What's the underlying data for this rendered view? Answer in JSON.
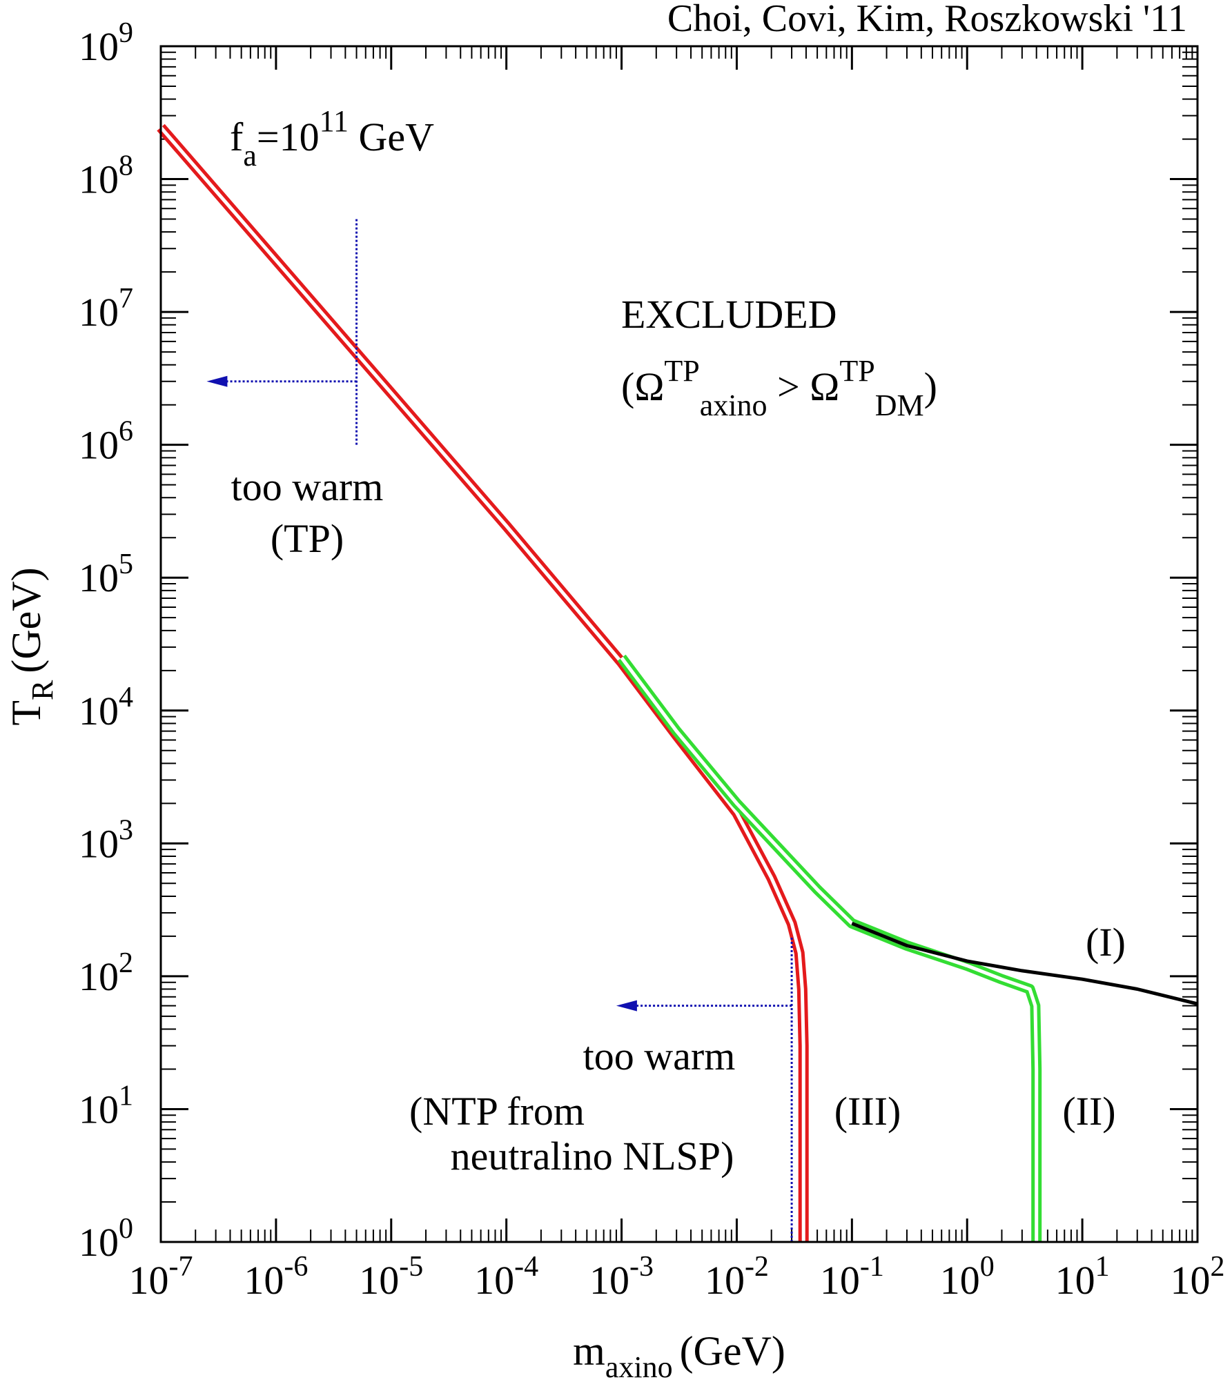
{
  "chart_data": {
    "type": "line",
    "title": "Choi, Covi, Kim, Roszkowski '11",
    "xlabel": {
      "main": "m",
      "sub": "axino",
      "unit": "(GeV)"
    },
    "ylabel": {
      "main": "T",
      "sub": "R",
      "unit": "(GeV)"
    },
    "xscale": "log",
    "yscale": "log",
    "xlim": [
      1e-07,
      100
    ],
    "ylim": [
      1,
      1000000000.0
    ],
    "x_ticks": [
      {
        "base": "10",
        "exp": "-7",
        "value": 1e-07
      },
      {
        "base": "10",
        "exp": "-6",
        "value": 1e-06
      },
      {
        "base": "10",
        "exp": "-5",
        "value": 1e-05
      },
      {
        "base": "10",
        "exp": "-4",
        "value": 0.0001
      },
      {
        "base": "10",
        "exp": "-3",
        "value": 0.001
      },
      {
        "base": "10",
        "exp": "-2",
        "value": 0.01
      },
      {
        "base": "10",
        "exp": "-1",
        "value": 0.1
      },
      {
        "base": "10",
        "exp": "0",
        "value": 1
      },
      {
        "base": "10",
        "exp": "1",
        "value": 10
      },
      {
        "base": "10",
        "exp": "2",
        "value": 100
      }
    ],
    "y_ticks": [
      {
        "base": "10",
        "exp": "0",
        "value": 1
      },
      {
        "base": "10",
        "exp": "1",
        "value": 10
      },
      {
        "base": "10",
        "exp": "2",
        "value": 100
      },
      {
        "base": "10",
        "exp": "3",
        "value": 1000
      },
      {
        "base": "10",
        "exp": "4",
        "value": 10000
      },
      {
        "base": "10",
        "exp": "5",
        "value": 100000
      },
      {
        "base": "10",
        "exp": "6",
        "value": 1000000
      },
      {
        "base": "10",
        "exp": "7",
        "value": 10000000
      },
      {
        "base": "10",
        "exp": "8",
        "value": 100000000
      },
      {
        "base": "10",
        "exp": "9",
        "value": 1000000000
      }
    ],
    "series": [
      {
        "name": "(III)",
        "color": "#e41a1c",
        "style": "double",
        "points": [
          [
            1e-07,
            245000000.0
          ],
          [
            1e-06,
            24500000.0
          ],
          [
            1e-05,
            2450000.0
          ],
          [
            0.0001,
            245000.0
          ],
          [
            0.001,
            23000.0
          ],
          [
            0.003,
            6500
          ],
          [
            0.01,
            1700
          ],
          [
            0.02,
            550
          ],
          [
            0.03,
            250
          ],
          [
            0.035,
            150
          ],
          [
            0.037,
            80
          ],
          [
            0.038,
            30
          ],
          [
            0.038,
            1
          ]
        ]
      },
      {
        "name": "(II)",
        "color": "#33dd33",
        "style": "double",
        "points": [
          [
            0.001,
            25000.0
          ],
          [
            0.003,
            7000
          ],
          [
            0.01,
            2000
          ],
          [
            0.05,
            450
          ],
          [
            0.1,
            250
          ],
          [
            0.3,
            170
          ],
          [
            1,
            120
          ],
          [
            2,
            95
          ],
          [
            3.5,
            80
          ],
          [
            3.9,
            60
          ],
          [
            4,
            20
          ],
          [
            4,
            1
          ]
        ]
      },
      {
        "name": "(I)",
        "color": "#000000",
        "style": "single",
        "points": [
          [
            0.1,
            250
          ],
          [
            0.3,
            170
          ],
          [
            1,
            130
          ],
          [
            3,
            110
          ],
          [
            10,
            95
          ],
          [
            30,
            80
          ],
          [
            100,
            62
          ]
        ]
      }
    ],
    "annotations": [
      {
        "id": "fa",
        "parts": [
          {
            "t": "f"
          },
          {
            "t": "a",
            "s": "sub"
          },
          {
            "t": "=10"
          },
          {
            "t": "11",
            "s": "sup"
          },
          {
            "t": " GeV"
          }
        ]
      },
      {
        "id": "excluded1",
        "parts": [
          {
            "t": "EXCLUDED"
          }
        ]
      },
      {
        "id": "excluded2",
        "parts": [
          {
            "t": "(Ω"
          },
          {
            "t": "TP",
            "s": "sup"
          },
          {
            "t": "axino",
            "s": "sub"
          },
          {
            "t": " > Ω"
          },
          {
            "t": "TP",
            "s": "sup"
          },
          {
            "t": "DM",
            "s": "sub"
          },
          {
            "t": ")"
          }
        ]
      },
      {
        "id": "warm_tp1",
        "parts": [
          {
            "t": "too warm"
          }
        ]
      },
      {
        "id": "warm_tp2",
        "parts": [
          {
            "t": "(TP)"
          }
        ]
      },
      {
        "id": "warm_ntp1",
        "parts": [
          {
            "t": "too warm"
          }
        ]
      },
      {
        "id": "warm_ntp2",
        "parts": [
          {
            "t": "(NTP from"
          }
        ]
      },
      {
        "id": "warm_ntp3",
        "parts": [
          {
            "t": "neutralino NLSP)"
          }
        ]
      },
      {
        "id": "label_I",
        "parts": [
          {
            "t": "(I)"
          }
        ]
      },
      {
        "id": "label_II",
        "parts": [
          {
            "t": "(II)"
          }
        ]
      },
      {
        "id": "label_III",
        "parts": [
          {
            "t": "(III)"
          }
        ]
      }
    ],
    "constraint_markers": [
      {
        "name": "tp-warm-limit",
        "color": "#1010b0",
        "x": 5e-06,
        "y_range": [
          1000000.0,
          50000000.0
        ],
        "arrow_at_y": 3000000.0,
        "arrow_to_x": 2.5e-07
      },
      {
        "name": "ntp-warm-limit",
        "color": "#1010b0",
        "x": 0.03,
        "y_range": [
          1,
          200
        ],
        "arrow_at_y": 60,
        "arrow_to_x": 0.0009
      }
    ],
    "grid": false,
    "legend": "none"
  }
}
